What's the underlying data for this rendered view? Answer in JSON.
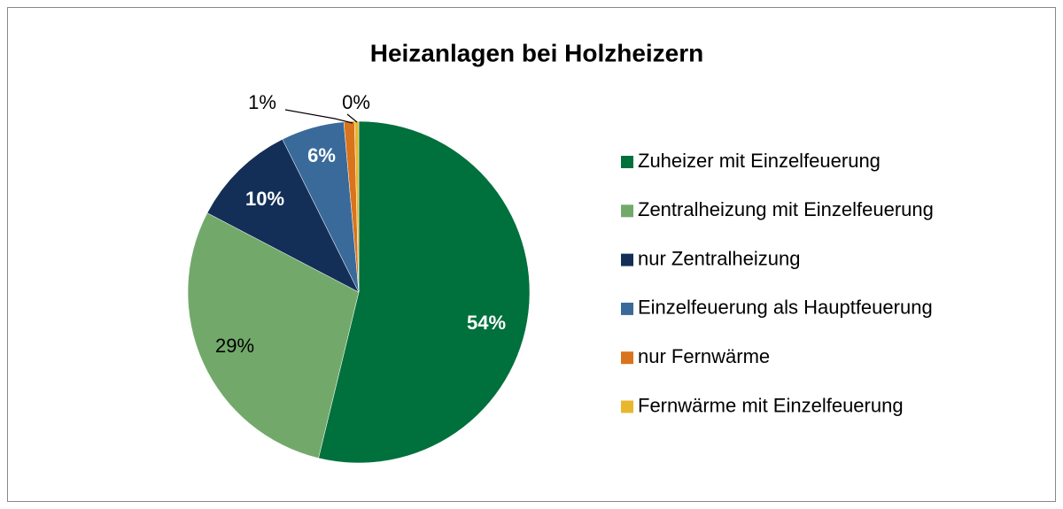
{
  "chart_data": {
    "type": "pie",
    "title": "Heizanlagen bei Holzheizern",
    "categories": [
      "Zuheizer mit Einzelfeuerung",
      "Zentralheizung mit Einzelfeuerung",
      "nur Zentralheizung",
      "Einzelfeuerung als Hauptfeuerung",
      "nur Fernwärme",
      "Fernwärme mit Einzelfeuerung"
    ],
    "values": [
      54,
      29,
      10,
      6,
      1,
      0.4
    ],
    "value_labels": [
      "54%",
      "29%",
      "10%",
      "6%",
      "1%",
      "0%"
    ],
    "colors": [
      "#00703c",
      "#72a96b",
      "#132f57",
      "#3a6a9a",
      "#d9731c",
      "#e8b72e"
    ],
    "legend": "right"
  }
}
